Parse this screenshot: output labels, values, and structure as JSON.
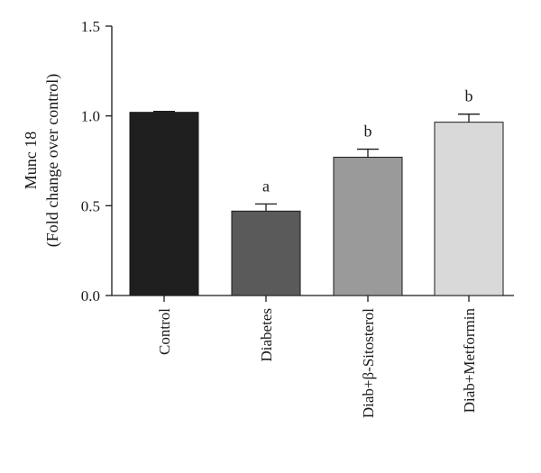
{
  "chart_data": {
    "type": "bar",
    "categories": [
      "Control",
      "Diabetes",
      "Diab+β-Sitosterol",
      "Diab+Metformin"
    ],
    "values": [
      1.02,
      0.47,
      0.77,
      0.965
    ],
    "errors": [
      0.005,
      0.04,
      0.045,
      0.045
    ],
    "significance": [
      "",
      "a",
      "b",
      "b"
    ],
    "colors": [
      "#1f1f1f",
      "#5a5a5a",
      "#9a9a9a",
      "#d9d9d9"
    ],
    "title": "",
    "xlabel": "",
    "ylabel": [
      "Munc 18",
      "(Fold change over control)"
    ],
    "ylim": [
      0,
      1.5
    ],
    "yticks": [
      "0.0",
      "0.5",
      "1.0",
      "1.5"
    ],
    "grid": false
  }
}
